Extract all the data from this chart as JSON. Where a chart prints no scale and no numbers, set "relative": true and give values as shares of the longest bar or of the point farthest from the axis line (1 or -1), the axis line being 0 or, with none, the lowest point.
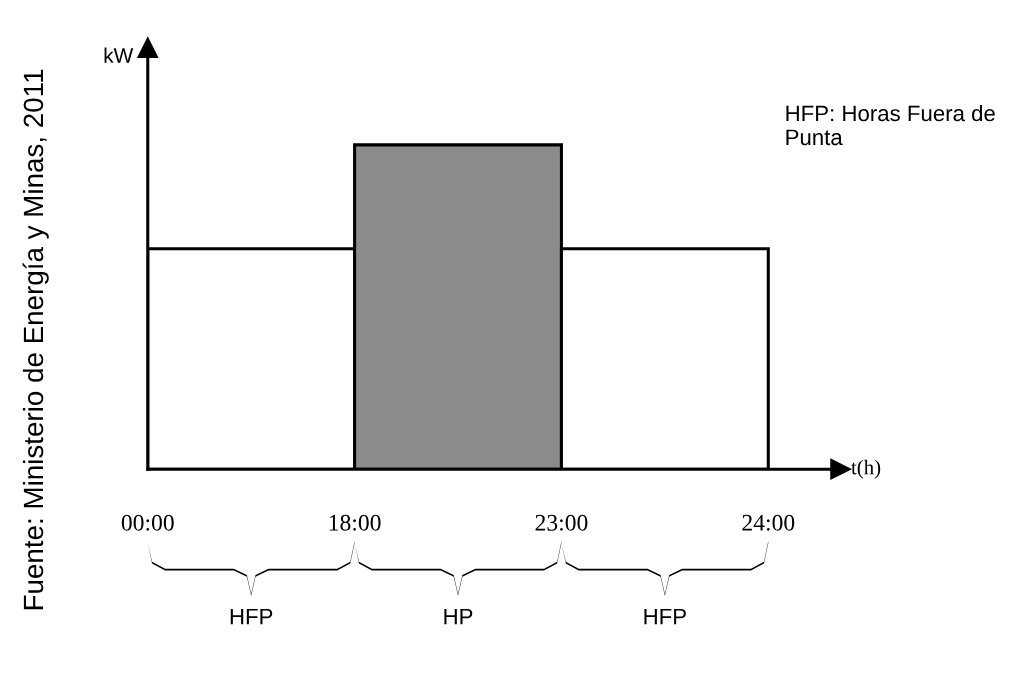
{
  "chart_data": {
    "type": "bar",
    "relative": true,
    "categories": [
      "HFP",
      "HP",
      "HFP"
    ],
    "values": [
      0.68,
      1,
      0.68
    ],
    "colors": [
      "#ffffff",
      "#8c8c8c",
      "#ffffff"
    ],
    "ylabel": "kW",
    "xlabel": "t(h)",
    "annotations": [
      "Fuente: Ministerio de Energía y Minas, 2011",
      "HFP: Horas Fuera de Punta",
      "00:00",
      "18:00",
      "23:00",
      "24:00"
    ],
    "grid": false,
    "legend": false
  }
}
